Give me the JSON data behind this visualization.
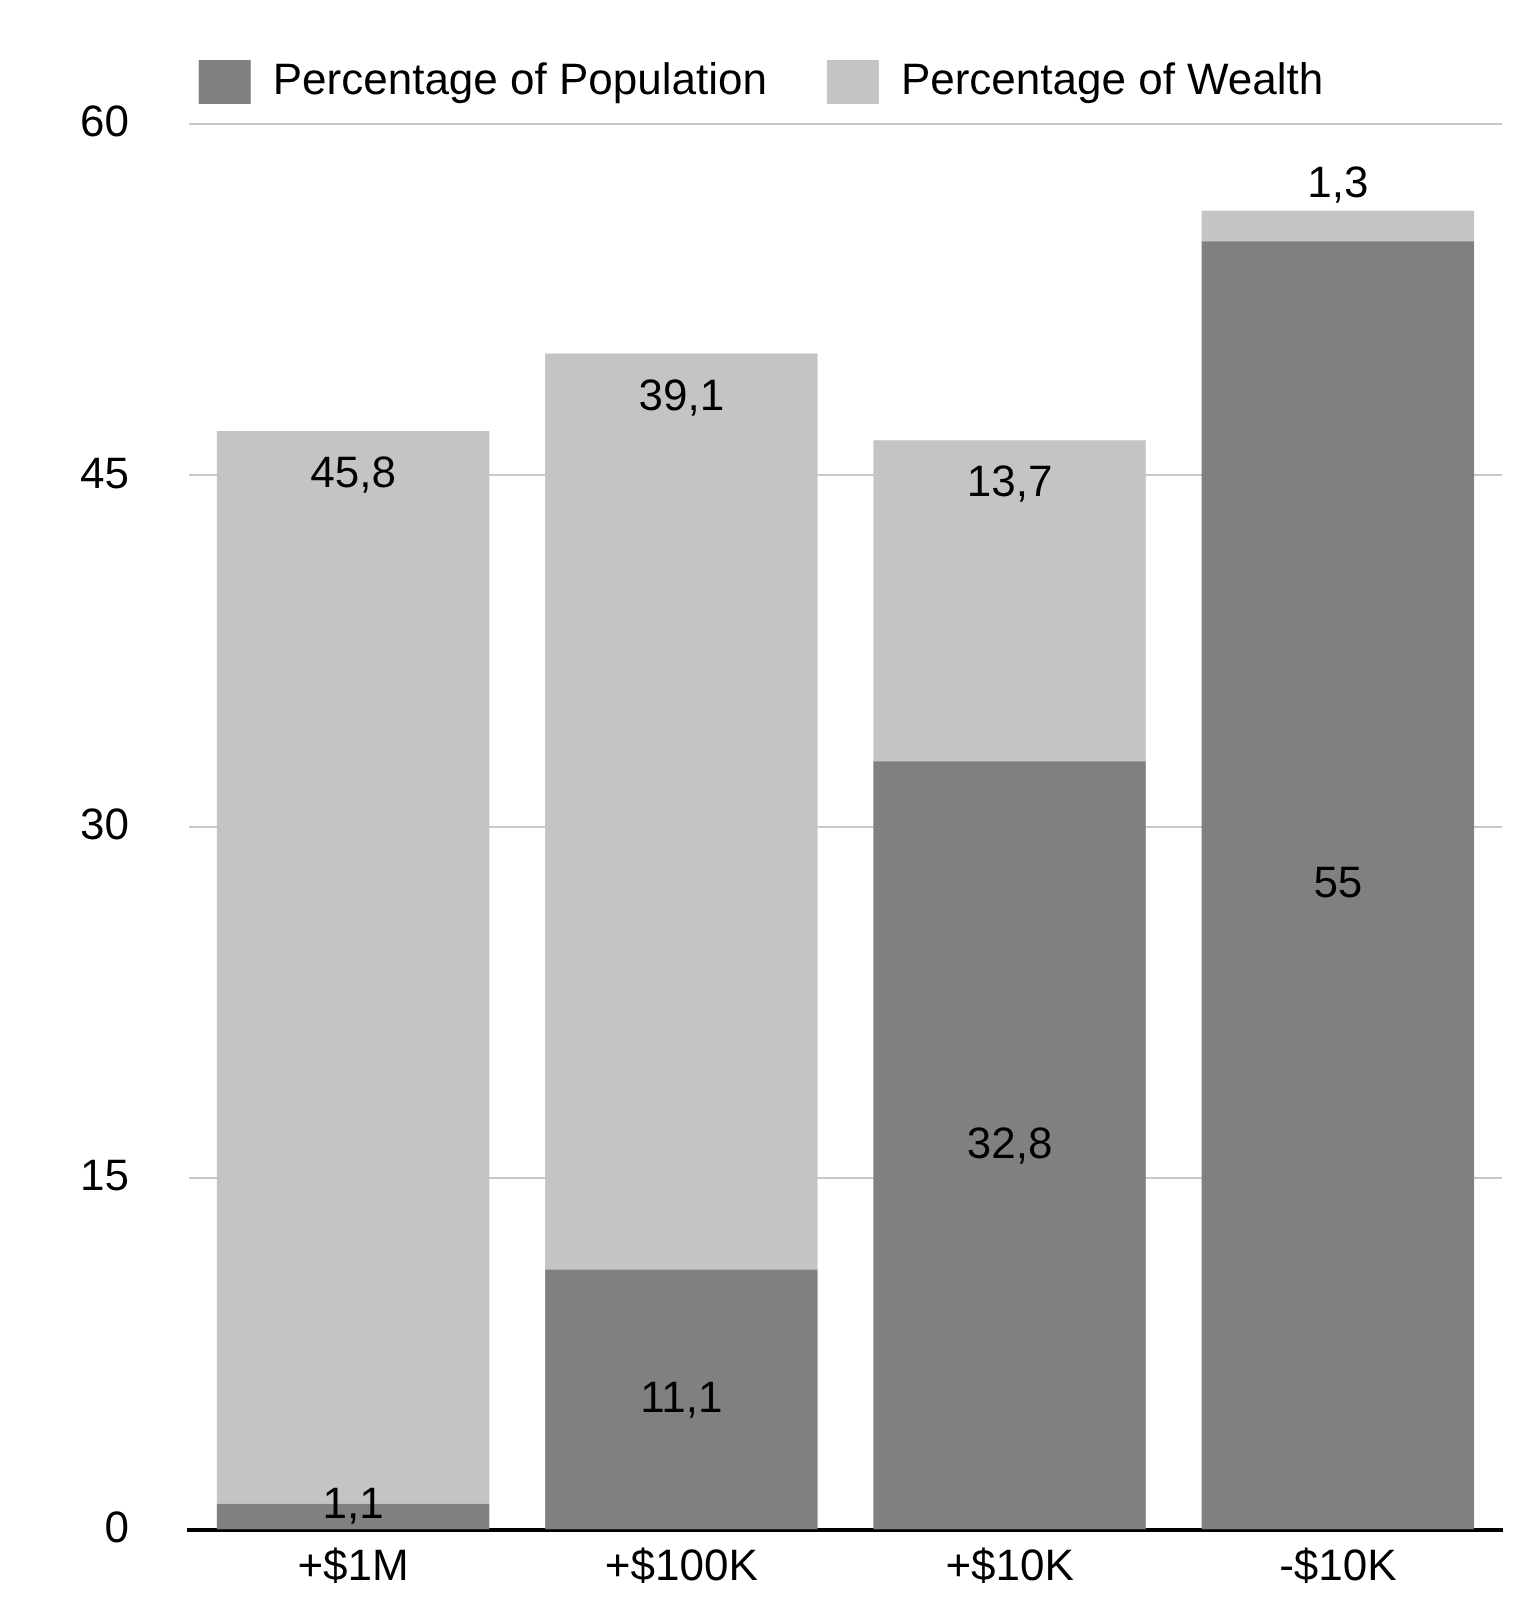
{
  "chart_data": {
    "type": "bar",
    "stacked": true,
    "categories": [
      "+$1M",
      "+$100K",
      "+$10K",
      "-$10K"
    ],
    "series": [
      {
        "name": "Percentage of Population",
        "color": "#808080",
        "values": [
          1.1,
          11.1,
          32.8,
          55
        ],
        "value_labels": [
          "1,1",
          "11,1",
          "32,8",
          "55"
        ]
      },
      {
        "name": "Percentage of Wealth",
        "color": "#c4c4c4",
        "values": [
          45.8,
          39.1,
          13.7,
          1.3
        ],
        "value_labels": [
          "45,8",
          "39,1",
          "13,7",
          "1,3"
        ]
      }
    ],
    "ylim": [
      0,
      60
    ],
    "yticks": [
      0,
      15,
      30,
      45,
      60
    ],
    "grid": "y",
    "legend": "top"
  }
}
